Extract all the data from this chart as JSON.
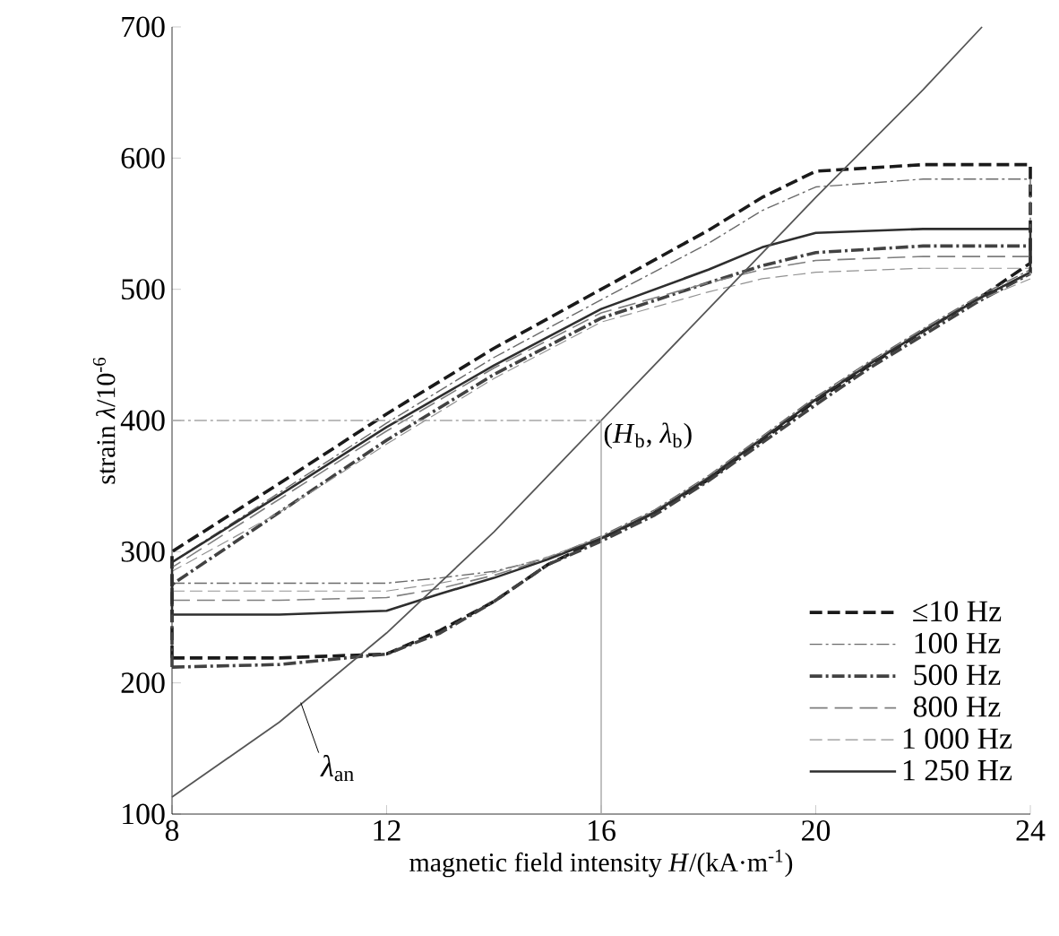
{
  "chart_data": {
    "type": "line",
    "xlabel": "magnetic field intensity  *H*/(kA·m$^{-1}$)",
    "ylabel": "strain  *λ*/10$^{-6}$",
    "xlim": [
      8,
      24
    ],
    "ylim": [
      100,
      700
    ],
    "xticks": [
      8,
      12,
      16,
      20,
      24
    ],
    "yticks": [
      100,
      200,
      300,
      400,
      500,
      600,
      700
    ],
    "grid": false,
    "legend": "bottom right",
    "marker": "none",
    "series": [
      {
        "name": "≤10 Hz",
        "color": "#1a1a1a",
        "line_style": "dashed",
        "x": [
          8,
          10,
          12,
          13,
          14,
          15,
          16,
          17,
          18,
          19,
          20,
          21,
          22,
          23,
          24
        ],
        "values": [
          219,
          219,
          222,
          240,
          262,
          290,
          310,
          330,
          355,
          385,
          415,
          442,
          468,
          492,
          520
        ]
      },
      {
        "name": "100 Hz",
        "color": "#6a6a6a",
        "line_style": "dashdot",
        "x": [
          8,
          10,
          12,
          13,
          14,
          15,
          16,
          17,
          18,
          19,
          20,
          21,
          22,
          23,
          24
        ],
        "values": [
          276,
          276,
          276,
          280,
          285,
          295,
          312,
          332,
          358,
          388,
          418,
          445,
          470,
          494,
          515
        ]
      },
      {
        "name": "500 Hz",
        "color": "#424242",
        "line_style": "dashdot",
        "x": [
          8,
          10,
          12,
          13,
          14,
          15,
          16,
          17,
          18,
          19,
          20,
          21,
          22,
          23,
          24
        ],
        "values": [
          212,
          214,
          222,
          238,
          262,
          290,
          308,
          328,
          354,
          383,
          412,
          440,
          465,
          490,
          512
        ]
      },
      {
        "name": "800 Hz",
        "color": "#7e7e7e",
        "line_style": "longdash",
        "x": [
          8,
          10,
          12,
          13,
          14,
          15,
          16,
          17,
          18,
          19,
          20,
          21,
          22,
          23,
          24
        ],
        "values": [
          263,
          263,
          265,
          272,
          282,
          295,
          311,
          331,
          357,
          387,
          417,
          444,
          469,
          493,
          512
        ]
      },
      {
        "name": "1 000 Hz",
        "color": "#929292",
        "line_style": "dashed",
        "x": [
          8,
          10,
          12,
          13,
          14,
          15,
          16,
          17,
          18,
          19,
          20,
          21,
          22,
          23,
          24
        ],
        "values": [
          270,
          270,
          270,
          276,
          284,
          296,
          311,
          331,
          357,
          387,
          416,
          443,
          468,
          491,
          508
        ]
      },
      {
        "name": "1 250 Hz",
        "color": "#2e2e2e",
        "line_style": "solid",
        "x": [
          8,
          10,
          12,
          13,
          14,
          15,
          16,
          17,
          18,
          19,
          20,
          21,
          22,
          23,
          24
        ],
        "values": [
          252,
          252,
          255,
          268,
          280,
          294,
          310,
          330,
          356,
          386,
          416,
          443,
          468,
          492,
          513
        ]
      },
      {
        "color": "#1a1a1a",
        "line_style": "dashed",
        "x": [
          8,
          8,
          10,
          12,
          14,
          16,
          18,
          19,
          20,
          22,
          24,
          24
        ],
        "values": [
          219,
          300,
          352,
          405,
          455,
          500,
          545,
          570,
          590,
          595,
          595,
          520
        ]
      },
      {
        "color": "#6a6a6a",
        "line_style": "dashdot",
        "x": [
          8,
          8,
          10,
          12,
          14,
          16,
          18,
          19,
          20,
          22,
          24,
          24
        ],
        "values": [
          276,
          292,
          345,
          398,
          448,
          492,
          535,
          560,
          578,
          584,
          584,
          515
        ]
      },
      {
        "color": "#424242",
        "line_style": "dashdot",
        "x": [
          8,
          8,
          10,
          12,
          14,
          16,
          18,
          19,
          20,
          22,
          24,
          24
        ],
        "values": [
          212,
          275,
          330,
          385,
          435,
          478,
          505,
          518,
          528,
          533,
          533,
          512
        ]
      },
      {
        "color": "#7e7e7e",
        "line_style": "longdash",
        "x": [
          8,
          8,
          10,
          12,
          14,
          16,
          18,
          19,
          20,
          22,
          24,
          24
        ],
        "values": [
          263,
          288,
          340,
          392,
          440,
          482,
          505,
          515,
          522,
          525,
          525,
          512
        ]
      },
      {
        "color": "#929292",
        "line_style": "dashed",
        "x": [
          8,
          8,
          10,
          12,
          14,
          16,
          18,
          19,
          20,
          22,
          24,
          24
        ],
        "values": [
          270,
          285,
          330,
          382,
          432,
          475,
          498,
          508,
          513,
          516,
          516,
          508
        ]
      },
      {
        "color": "#2e2e2e",
        "line_style": "solid",
        "x": [
          8,
          8,
          10,
          12,
          14,
          16,
          18,
          19,
          20,
          22,
          24,
          24
        ],
        "values": [
          252,
          292,
          343,
          395,
          442,
          485,
          515,
          532,
          543,
          546,
          546,
          513
        ]
      },
      {
        "color": "#565656",
        "line_style": "solid",
        "x": [
          8,
          10,
          12,
          14,
          16,
          18,
          20,
          22,
          23.1
        ],
        "values": [
          113,
          170,
          238,
          315,
          400,
          485,
          570,
          652,
          700
        ]
      },
      {
        "color": "#a6a6a6",
        "line_style": "dashdot",
        "x": [
          8,
          16
        ],
        "values": [
          400,
          400
        ]
      },
      {
        "color": "#a6a6a6",
        "line_style": "solid",
        "x": [
          16,
          16
        ],
        "values": [
          400,
          100
        ]
      }
    ],
    "annotations": [
      {
        "text": "(*H*$_{b}$, *λ*$_{b}$)",
        "x": 16,
        "y": 400
      },
      {
        "text": "*λ*$_{an}$",
        "x": 10.4,
        "y": 185
      }
    ]
  }
}
